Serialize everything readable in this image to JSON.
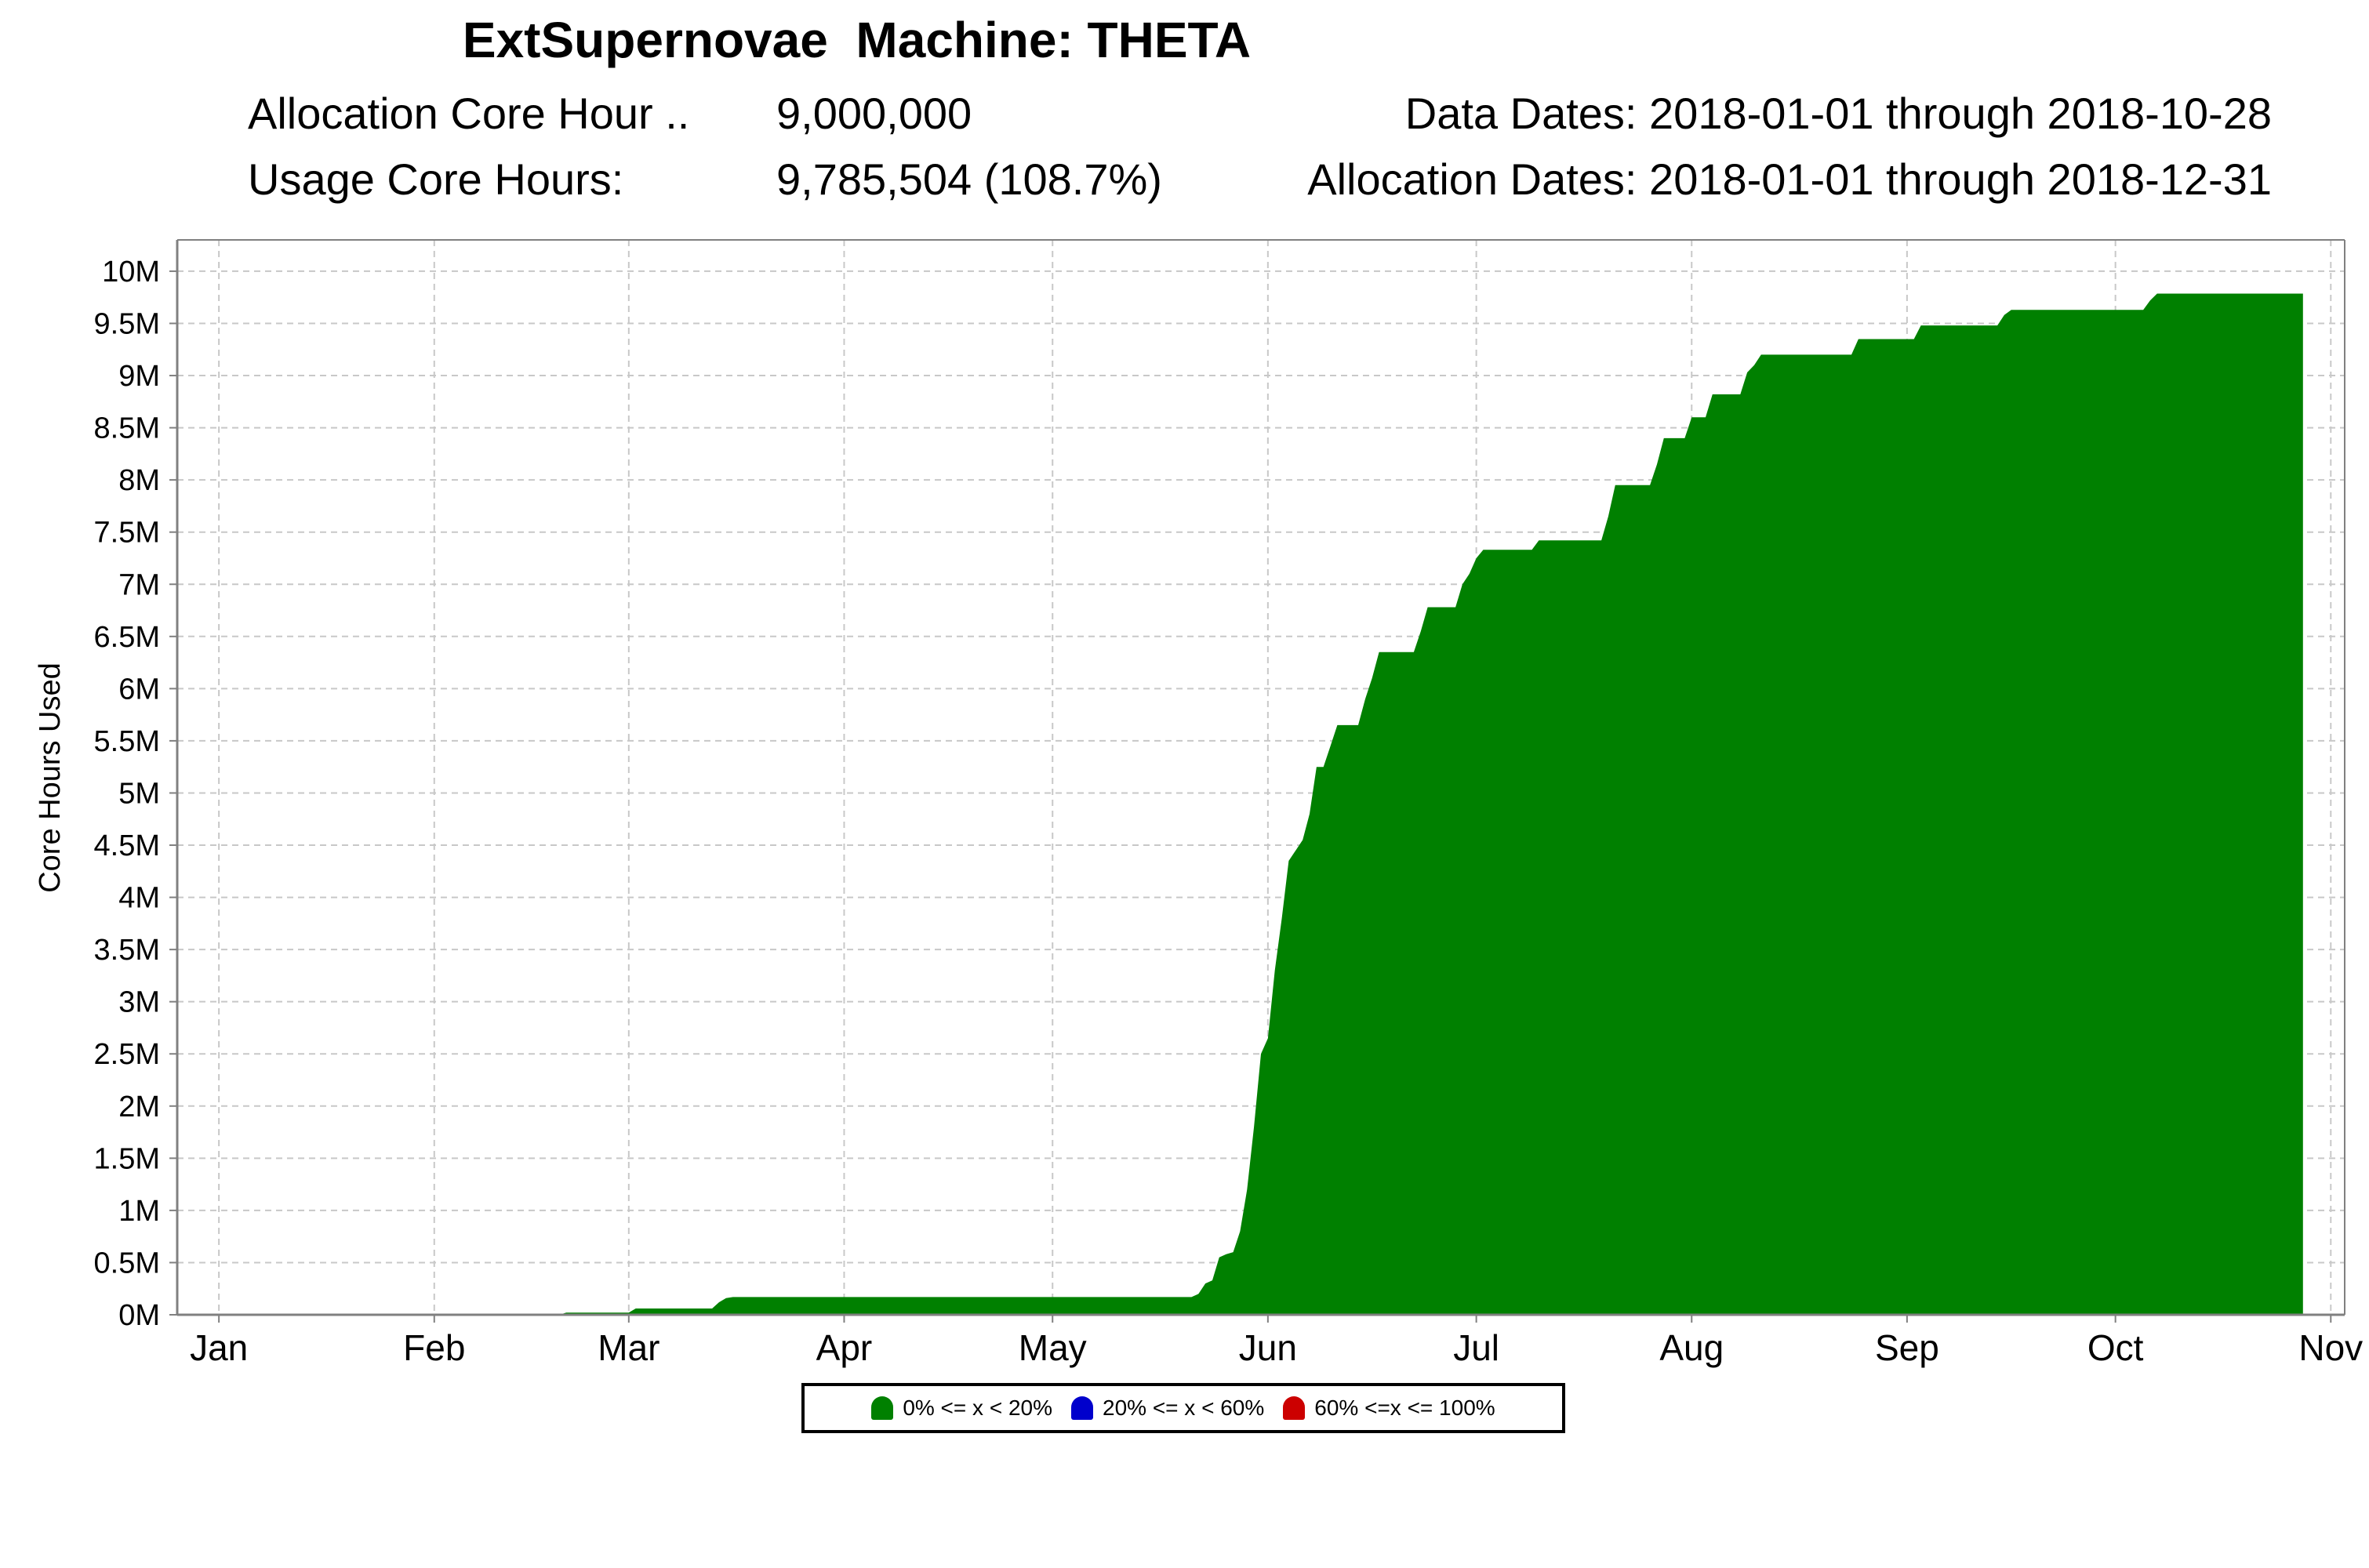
{
  "header": {
    "title": "ExtSupernovae  Machine: THETA",
    "alloc_label": "Allocation Core Hour ..",
    "alloc_value": "9,000,000",
    "usage_label": "Usage Core Hours:",
    "usage_value": "9,785,504 (108.7%)",
    "data_dates": "Data Dates: 2018-01-01 through 2018-10-28",
    "alloc_dates": "Allocation Dates: 2018-01-01 through 2018-12-31"
  },
  "legend": [
    {
      "label": "0% <= x < 20%",
      "color": "#008000"
    },
    {
      "label": "20% <= x < 60%",
      "color": "#0000cc"
    },
    {
      "label": "60% <=x <= 100%",
      "color": "#cc0000"
    }
  ],
  "chart_data": {
    "type": "area",
    "title": "",
    "xlabel": "",
    "ylabel": "Core Hours Used",
    "xlim": [
      "2017-12-26",
      "2018-11-03"
    ],
    "ylim": [
      0,
      10300000
    ],
    "x_ticks": [
      {
        "label": "Jan",
        "date": "2018-01-01"
      },
      {
        "label": "Feb",
        "date": "2018-02-01"
      },
      {
        "label": "Mar",
        "date": "2018-03-01"
      },
      {
        "label": "Apr",
        "date": "2018-04-01"
      },
      {
        "label": "May",
        "date": "2018-05-01"
      },
      {
        "label": "Jun",
        "date": "2018-06-01"
      },
      {
        "label": "Jul",
        "date": "2018-07-01"
      },
      {
        "label": "Aug",
        "date": "2018-08-01"
      },
      {
        "label": "Sep",
        "date": "2018-09-01"
      },
      {
        "label": "Oct",
        "date": "2018-10-01"
      },
      {
        "label": "Nov",
        "date": "2018-11-01"
      }
    ],
    "y_ticks": [
      {
        "label": "0M",
        "value": 0
      },
      {
        "label": "0.5M",
        "value": 500000
      },
      {
        "label": "1M",
        "value": 1000000
      },
      {
        "label": "1.5M",
        "value": 1500000
      },
      {
        "label": "2M",
        "value": 2000000
      },
      {
        "label": "2.5M",
        "value": 2500000
      },
      {
        "label": "3M",
        "value": 3000000
      },
      {
        "label": "3.5M",
        "value": 3500000
      },
      {
        "label": "4M",
        "value": 4000000
      },
      {
        "label": "4.5M",
        "value": 4500000
      },
      {
        "label": "5M",
        "value": 5000000
      },
      {
        "label": "5.5M",
        "value": 5500000
      },
      {
        "label": "6M",
        "value": 6000000
      },
      {
        "label": "6.5M",
        "value": 6500000
      },
      {
        "label": "7M",
        "value": 7000000
      },
      {
        "label": "7.5M",
        "value": 7500000
      },
      {
        "label": "8M",
        "value": 8000000
      },
      {
        "label": "8.5M",
        "value": 8500000
      },
      {
        "label": "9M",
        "value": 9000000
      },
      {
        "label": "9.5M",
        "value": 9500000
      },
      {
        "label": "10M",
        "value": 10000000
      }
    ],
    "grid": true,
    "legend_position": "bottom-center",
    "series": [
      {
        "color": "#008000",
        "points": [
          [
            "2018-02-19",
            0
          ],
          [
            "2018-02-20",
            20000
          ],
          [
            "2018-03-01",
            20000
          ],
          [
            "2018-03-02",
            60000
          ],
          [
            "2018-03-13",
            60000
          ],
          [
            "2018-03-14",
            120000
          ],
          [
            "2018-03-15",
            160000
          ],
          [
            "2018-03-16",
            170000
          ],
          [
            "2018-05-21",
            170000
          ],
          [
            "2018-05-22",
            200000
          ],
          [
            "2018-05-23",
            300000
          ],
          [
            "2018-05-24",
            330000
          ],
          [
            "2018-05-25",
            550000
          ],
          [
            "2018-05-26",
            580000
          ],
          [
            "2018-05-27",
            600000
          ],
          [
            "2018-05-28",
            800000
          ],
          [
            "2018-05-29",
            1200000
          ],
          [
            "2018-05-30",
            1800000
          ],
          [
            "2018-05-31",
            2500000
          ],
          [
            "2018-06-01",
            2650000
          ],
          [
            "2018-06-02",
            3300000
          ],
          [
            "2018-06-03",
            3800000
          ],
          [
            "2018-06-04",
            4350000
          ],
          [
            "2018-06-05",
            4450000
          ],
          [
            "2018-06-06",
            4550000
          ],
          [
            "2018-06-07",
            4800000
          ],
          [
            "2018-06-08",
            5250000
          ],
          [
            "2018-06-09",
            5250000
          ],
          [
            "2018-06-10",
            5450000
          ],
          [
            "2018-06-11",
            5650000
          ],
          [
            "2018-06-14",
            5650000
          ],
          [
            "2018-06-15",
            5900000
          ],
          [
            "2018-06-16",
            6100000
          ],
          [
            "2018-06-17",
            6350000
          ],
          [
            "2018-06-22",
            6350000
          ],
          [
            "2018-06-23",
            6550000
          ],
          [
            "2018-06-24",
            6780000
          ],
          [
            "2018-06-28",
            6780000
          ],
          [
            "2018-06-29",
            7000000
          ],
          [
            "2018-06-30",
            7100000
          ],
          [
            "2018-07-01",
            7250000
          ],
          [
            "2018-07-02",
            7330000
          ],
          [
            "2018-07-09",
            7330000
          ],
          [
            "2018-07-10",
            7420000
          ],
          [
            "2018-07-19",
            7420000
          ],
          [
            "2018-07-20",
            7650000
          ],
          [
            "2018-07-21",
            7950000
          ],
          [
            "2018-07-26",
            7950000
          ],
          [
            "2018-07-27",
            8150000
          ],
          [
            "2018-07-28",
            8400000
          ],
          [
            "2018-07-31",
            8400000
          ],
          [
            "2018-08-01",
            8600000
          ],
          [
            "2018-08-03",
            8600000
          ],
          [
            "2018-08-04",
            8820000
          ],
          [
            "2018-08-08",
            8820000
          ],
          [
            "2018-08-09",
            9030000
          ],
          [
            "2018-08-10",
            9100000
          ],
          [
            "2018-08-11",
            9200000
          ],
          [
            "2018-08-24",
            9200000
          ],
          [
            "2018-08-25",
            9350000
          ],
          [
            "2018-09-02",
            9350000
          ],
          [
            "2018-09-03",
            9480000
          ],
          [
            "2018-09-14",
            9480000
          ],
          [
            "2018-09-15",
            9580000
          ],
          [
            "2018-09-16",
            9630000
          ],
          [
            "2018-10-05",
            9630000
          ],
          [
            "2018-10-06",
            9720000
          ],
          [
            "2018-10-07",
            9785504
          ],
          [
            "2018-10-28",
            9785504
          ]
        ]
      }
    ]
  }
}
